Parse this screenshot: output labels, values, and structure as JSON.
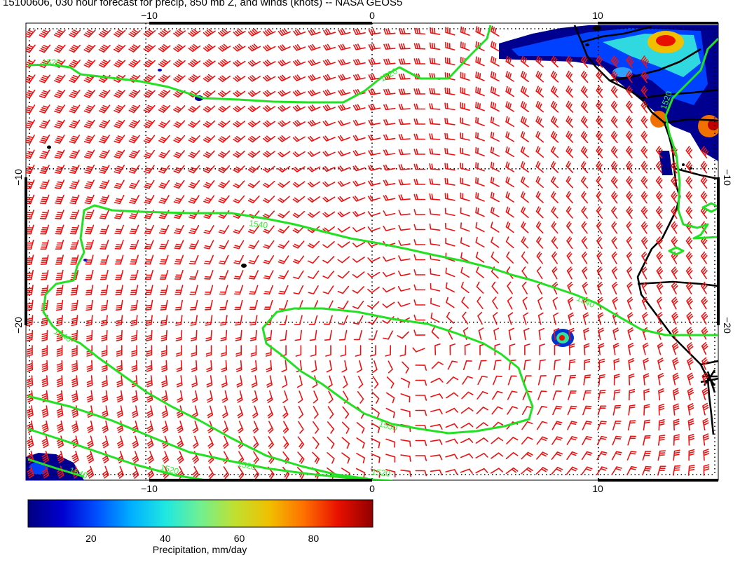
{
  "title": "15100606, 030 hour forecast for precip, 850 mb Z, and winds (knots) -- NASA GEOS5",
  "map": {
    "lon_range": [
      -15.3,
      15.3
    ],
    "lat_range": [
      -30.3,
      -0.5
    ],
    "grid_lons": [
      -10,
      0,
      10
    ],
    "grid_lats": [
      -10,
      -20
    ],
    "top_tick_labels": [
      "−10",
      "0",
      "10"
    ],
    "bottom_tick_labels": [
      "−10",
      "0",
      "10"
    ],
    "left_tick_labels": [
      "−10",
      "−20"
    ],
    "right_tick_labels": [
      "−10",
      "−20"
    ],
    "gridlines": "dotted",
    "colors": {
      "contour": "#22e022",
      "wind_barb": "#ee1111",
      "coast": "#000000"
    }
  },
  "contours": [
    {
      "label": "1520",
      "label_positions": [
        "1520",
        "1520",
        "1520"
      ]
    },
    {
      "label": "1540",
      "label_positions": [
        "1540",
        "1540",
        "1540"
      ]
    },
    {
      "label": "1550",
      "label_positions": [
        "1550"
      ]
    },
    {
      "label": "1520 (south)",
      "label_positions": [
        "1540",
        "1520",
        "1520",
        "1520"
      ]
    }
  ],
  "colorbar": {
    "ticks": [
      "20",
      "40",
      "60",
      "80"
    ],
    "tick_values": [
      20,
      40,
      60,
      80
    ],
    "range": [
      3,
      96
    ],
    "label": "Precipitation, mm/day",
    "colormap": [
      "#00007f",
      "#0000d0",
      "#0050ff",
      "#00b0ff",
      "#20e8e0",
      "#70f090",
      "#c0e030",
      "#f0c000",
      "#ff7000",
      "#e81000",
      "#900000"
    ]
  }
}
